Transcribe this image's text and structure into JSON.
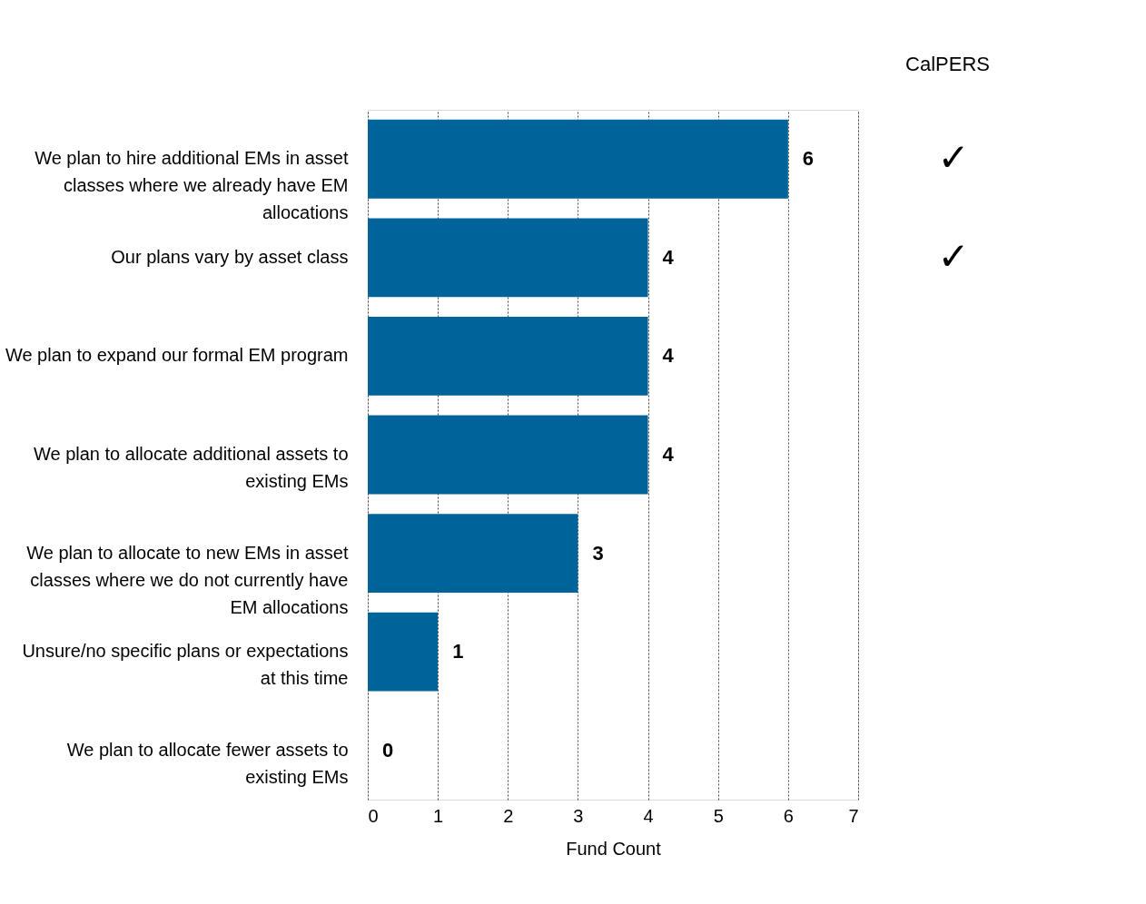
{
  "chart_data": {
    "type": "bar",
    "orientation": "horizontal",
    "xlabel": "Fund Count",
    "categories": [
      "We plan to hire additional EMs in asset classes where we already have EM allocations",
      "Our plans vary by asset class",
      "We plan to expand our formal EM program",
      "We plan to allocate additional assets to existing EMs",
      "We plan to allocate to new EMs in asset classes where we do not currently have EM allocations",
      "Unsure/no specific plans or expectations at this time",
      "We plan to allocate fewer assets to existing EMs"
    ],
    "values": [
      6,
      4,
      4,
      4,
      3,
      1,
      0
    ],
    "color": "#00639a",
    "data_labels": true,
    "xlim": [
      0,
      7
    ],
    "xticks": [
      0,
      1,
      2,
      3,
      4,
      5,
      6,
      7
    ],
    "grid": "x",
    "annotations": [
      "CalPERS",
      "✓",
      "✓"
    ]
  }
}
